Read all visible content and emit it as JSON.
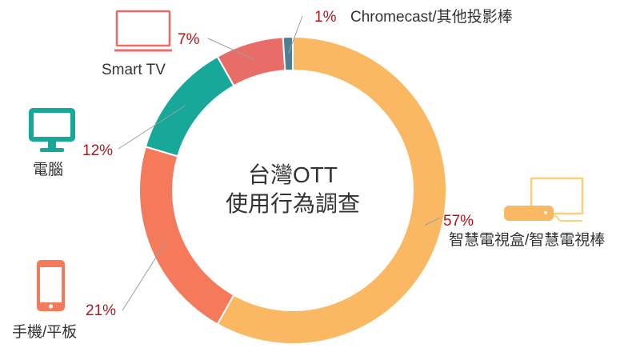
{
  "chart_data": {
    "type": "pie",
    "variant": "donut",
    "title_lines": [
      "台灣OTT",
      "使用行為調查"
    ],
    "slices": [
      {
        "label": "智慧電視盒/智慧電視棒",
        "value": 57,
        "value_label": "57%",
        "color": "#fbb862",
        "icon": "tv-box-icon"
      },
      {
        "label": "手機/平板",
        "value": 21,
        "value_label": "21%",
        "color": "#f47a5b",
        "icon": "smartphone-icon"
      },
      {
        "label": "電腦",
        "value": 12,
        "value_label": "12%",
        "color": "#17a89a",
        "icon": "desktop-monitor-icon"
      },
      {
        "label": "Smart TV",
        "value": 7,
        "value_label": "7%",
        "color": "#e86c68",
        "icon": "smart-tv-icon"
      },
      {
        "label": "Chromecast/其他投影棒",
        "value": 1,
        "value_label": "1%",
        "color": "#4d7f92",
        "icon": ""
      }
    ],
    "start_angle": "12 o'clock",
    "direction": "clockwise",
    "legend": "none"
  }
}
